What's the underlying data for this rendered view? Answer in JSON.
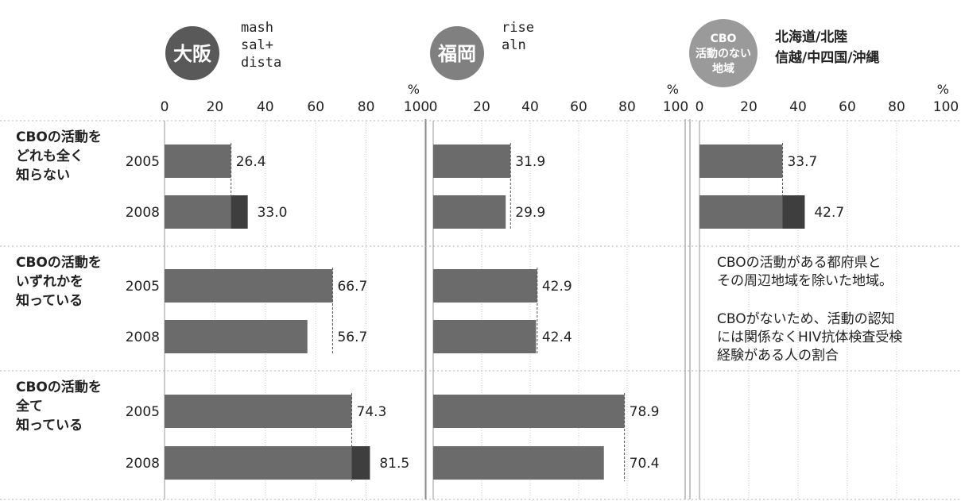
{
  "colors": {
    "bar": "#6b6b6b",
    "bar_dark": "#3e3e3e",
    "badge_osaka": "#595959",
    "badge_fukuoka": "#808080",
    "badge_cbo": "#9a9a9a",
    "grid": "#c8c8c8",
    "dashed": "#555555"
  },
  "percent_symbol": "%",
  "rows": [
    {
      "lines": [
        "CBOの活動を",
        "どれも全く",
        "知らない"
      ]
    },
    {
      "lines": [
        "CBOの活動を",
        "いずれかを",
        "知っている"
      ]
    },
    {
      "lines": [
        "CBOの活動を",
        "全て",
        "知っている"
      ]
    }
  ],
  "years": [
    "2005",
    "2008"
  ],
  "ticks": [
    "0",
    "20",
    "40",
    "60",
    "80",
    "100"
  ],
  "panels": [
    {
      "badge_lines": [
        "大阪"
      ],
      "legend_lines": [
        "mash",
        "sal+",
        "dista"
      ]
    },
    {
      "badge_lines": [
        "福岡"
      ],
      "legend_lines": [
        "rise",
        "aln"
      ]
    },
    {
      "badge_lines": [
        "CBO",
        "活動のない",
        "地域"
      ],
      "legend_lines": [
        "北海道/北陸",
        "信越/中四国/沖縄"
      ],
      "note1": [
        "CBOの活動がある都府県と",
        "その周辺地域を除いた地域。"
      ],
      "note2": [
        "CBOがないため、活動の認知",
        "には関係なくHIV抗体検査受検",
        "経験がある人の割合"
      ]
    }
  ],
  "chart_data": [
    {
      "type": "bar",
      "orientation": "horizontal",
      "title": "大阪",
      "categories": [
        "CBOの活動をどれも全く知らない",
        "CBOの活動をいずれかを知っている",
        "CBOの活動を全て知っている"
      ],
      "series": [
        {
          "name": "2005",
          "values": [
            26.4,
            66.7,
            74.3
          ]
        },
        {
          "name": "2008",
          "values": [
            33.0,
            56.7,
            81.5
          ]
        }
      ],
      "value_labels": [
        [
          "26.4",
          "33.0"
        ],
        [
          "66.7",
          "56.7"
        ],
        [
          "74.3",
          "81.5"
        ]
      ],
      "xlim": [
        0,
        100
      ],
      "xlabel": "%"
    },
    {
      "type": "bar",
      "orientation": "horizontal",
      "title": "福岡",
      "categories": [
        "CBOの活動をどれも全く知らない",
        "CBOの活動をいずれかを知っている",
        "CBOの活動を全て知っている"
      ],
      "series": [
        {
          "name": "2005",
          "values": [
            31.9,
            42.9,
            78.9
          ]
        },
        {
          "name": "2008",
          "values": [
            29.9,
            42.4,
            70.4
          ]
        }
      ],
      "value_labels": [
        [
          "31.9",
          "29.9"
        ],
        [
          "42.9",
          "42.4"
        ],
        [
          "78.9",
          "70.4"
        ]
      ],
      "xlim": [
        0,
        100
      ],
      "xlabel": "%"
    },
    {
      "type": "bar",
      "orientation": "horizontal",
      "title": "CBO 活動のない地域",
      "categories": [
        "CBOの活動をどれも全く知らない"
      ],
      "series": [
        {
          "name": "2005",
          "values": [
            33.7
          ]
        },
        {
          "name": "2008",
          "values": [
            42.7
          ]
        }
      ],
      "value_labels": [
        [
          "33.7",
          "42.7"
        ]
      ],
      "xlim": [
        0,
        100
      ],
      "xlabel": "%"
    }
  ]
}
